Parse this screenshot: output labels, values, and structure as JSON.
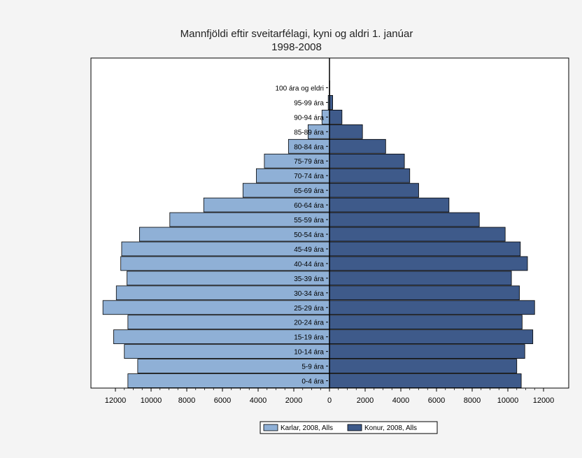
{
  "chart_data": {
    "type": "bar",
    "orientation": "horizontal",
    "title": "Mannfjöldi eftir sveitarfélagi, kyni og aldri 1. janúar",
    "subtitle": "1998-2008",
    "xlabel": "",
    "ylabel": "",
    "xlim": [
      -12500,
      12500
    ],
    "x_ticks": [
      "12000",
      "10000",
      "8000",
      "6000",
      "4000",
      "2000",
      "0",
      "2000",
      "4000",
      "6000",
      "8000",
      "10000",
      "12000"
    ],
    "categories": [
      "0-4 ára",
      "5-9 ára",
      "10-14 ára",
      "15-19 ára",
      "20-24 ára",
      "25-29 ára",
      "30-34 ára",
      "35-39 ára",
      "40-44 ára",
      "45-49 ára",
      "50-54 ára",
      "55-59 ára",
      "60-64 ára",
      "65-69 ára",
      "70-74 ára",
      "75-79 ára",
      "80-84 ára",
      "85-89 ára",
      "90-94 ára",
      "95-99 ára",
      "100 ára og eldri"
    ],
    "series": [
      {
        "name": "Karlar, 2008, Alls",
        "color": "#8fb0d6",
        "side": "left",
        "values": [
          11300,
          10750,
          11500,
          12100,
          11300,
          12700,
          11950,
          11350,
          11700,
          11650,
          10650,
          8950,
          7050,
          4850,
          4100,
          3650,
          2300,
          1200,
          420,
          70,
          5
        ]
      },
      {
        "name": "Konur, 2008, Alls",
        "color": "#3e5a8a",
        "side": "right",
        "values": [
          10750,
          10500,
          10950,
          11400,
          10800,
          11500,
          10650,
          10200,
          11100,
          10700,
          9850,
          8400,
          6700,
          5000,
          4500,
          4200,
          3150,
          1850,
          700,
          180,
          20
        ]
      }
    ],
    "legend_position": "bottom-center",
    "grid": false
  }
}
